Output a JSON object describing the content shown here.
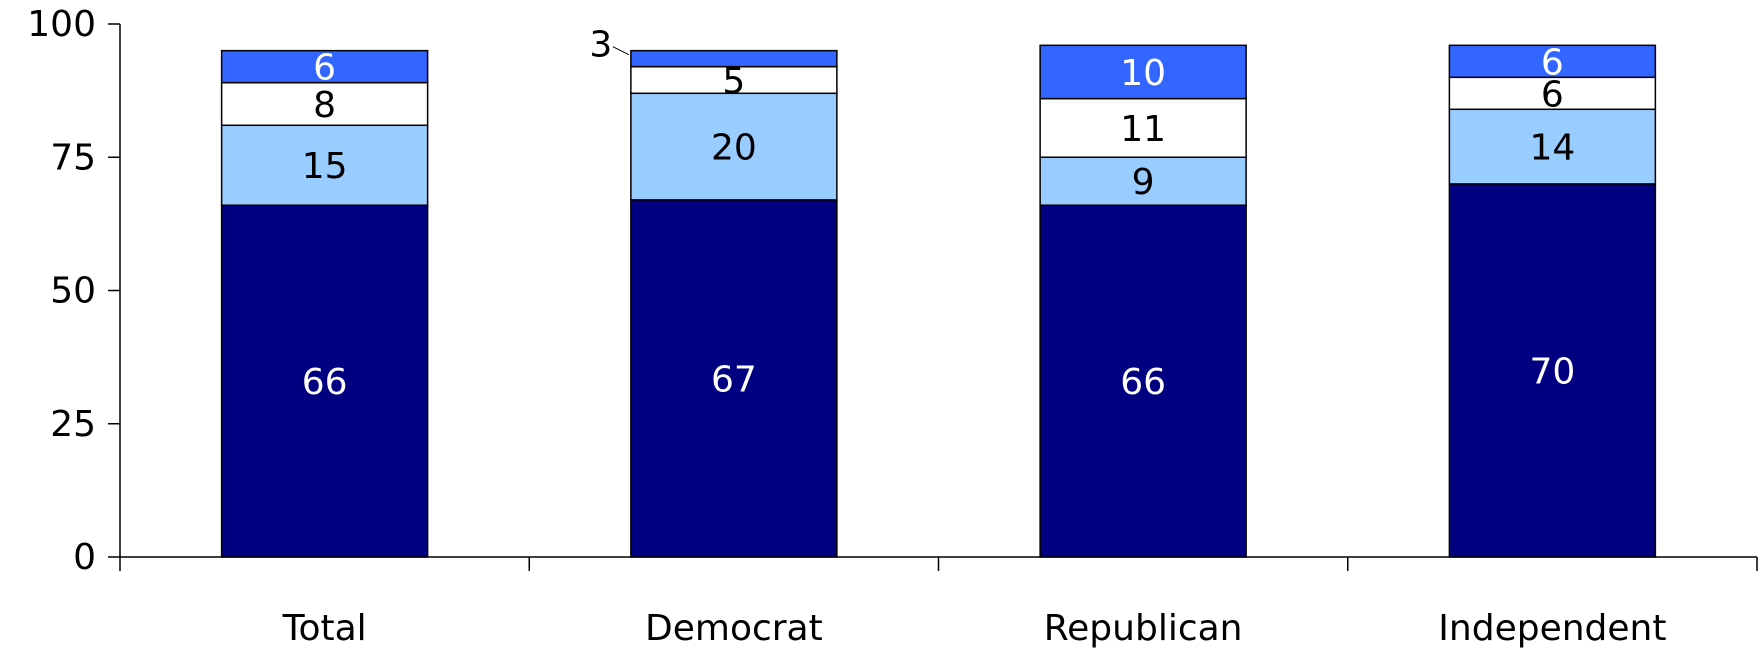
{
  "chart_data": {
    "type": "bar",
    "stacked": true,
    "categories": [
      "Total",
      "Democrat",
      "Republican",
      "Independent"
    ],
    "series": [
      {
        "values": [
          66,
          67,
          66,
          70
        ],
        "color": "#000080",
        "label_color": "#ffffff"
      },
      {
        "values": [
          15,
          20,
          9,
          14
        ],
        "color": "#99ccff",
        "label_color": "#000000"
      },
      {
        "values": [
          8,
          5,
          11,
          6
        ],
        "color": "#ffffff",
        "label_color": "#000000"
      },
      {
        "values": [
          6,
          3,
          10,
          6
        ],
        "color": "#3366ff",
        "label_color": "#ffffff"
      }
    ],
    "y_ticks": [
      "0",
      "25",
      "50",
      "75",
      "100"
    ],
    "ylim": [
      0,
      100
    ],
    "grid": false,
    "legend": "none"
  }
}
